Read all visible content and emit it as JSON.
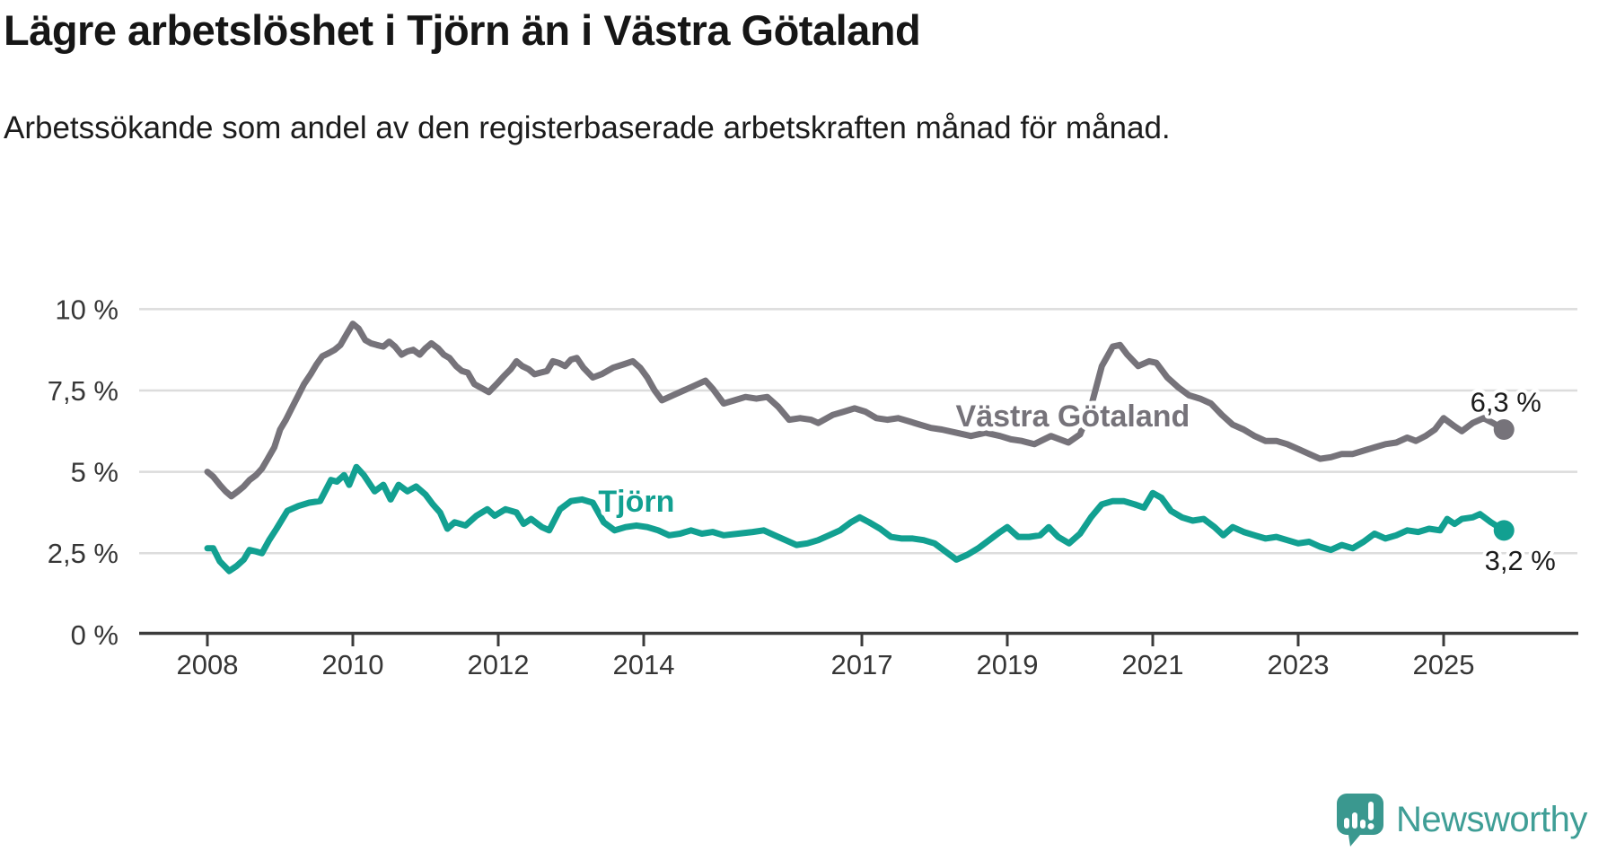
{
  "header": {
    "title": "Lägre arbetslöshet i Tjörn än i Västra Götaland",
    "subtitle": "Arbetssökande som andel av den registerbaserade arbetskraften månad för månad."
  },
  "chart_data": {
    "type": "line",
    "title": "Lägre arbetslöshet i Tjörn än i Västra Götaland",
    "xlabel": "",
    "ylabel": "",
    "x_range": [
      2008.0,
      2025.83
    ],
    "ylim": [
      0,
      10
    ],
    "grid": "horizontal",
    "legend_position": "inline-labels",
    "colors": {
      "grid": "#dcdcdc",
      "axis": "#3b3b3b",
      "tick_text": "#363636",
      "end_label_text": "#1b1b1b"
    },
    "y_axis": {
      "ticks": [
        {
          "v": 0,
          "label": "0 %"
        },
        {
          "v": 2.5,
          "label": "2,5 %"
        },
        {
          "v": 5,
          "label": "5 %"
        },
        {
          "v": 7.5,
          "label": "7,5 %"
        },
        {
          "v": 10,
          "label": "10 %"
        }
      ]
    },
    "x_axis": {
      "ticks": [
        {
          "t": 2008,
          "label": "2008"
        },
        {
          "t": 2010,
          "label": "2010"
        },
        {
          "t": 2012,
          "label": "2012"
        },
        {
          "t": 2014,
          "label": "2014"
        },
        {
          "t": 2017,
          "label": "2017"
        },
        {
          "t": 2019,
          "label": "2019"
        },
        {
          "t": 2021,
          "label": "2021"
        },
        {
          "t": 2023,
          "label": "2023"
        },
        {
          "t": 2025,
          "label": "2025"
        }
      ]
    },
    "series": [
      {
        "id": "vastra-gotaland",
        "label": "Västra Götaland",
        "color": "#76737a",
        "end_label": "6,3 %",
        "end_value": 6.3,
        "label_pos": {
          "t": 2019.9,
          "v": 6.73
        },
        "points": [
          [
            2008.0,
            5.0
          ],
          [
            2008.08,
            4.85
          ],
          [
            2008.17,
            4.6
          ],
          [
            2008.25,
            4.4
          ],
          [
            2008.33,
            4.25
          ],
          [
            2008.42,
            4.4
          ],
          [
            2008.5,
            4.55
          ],
          [
            2008.58,
            4.75
          ],
          [
            2008.67,
            4.9
          ],
          [
            2008.75,
            5.1
          ],
          [
            2008.83,
            5.4
          ],
          [
            2008.92,
            5.75
          ],
          [
            2009.0,
            6.3
          ],
          [
            2009.08,
            6.6
          ],
          [
            2009.17,
            7.0
          ],
          [
            2009.25,
            7.35
          ],
          [
            2009.33,
            7.7
          ],
          [
            2009.42,
            8.0
          ],
          [
            2009.5,
            8.3
          ],
          [
            2009.58,
            8.55
          ],
          [
            2009.67,
            8.65
          ],
          [
            2009.75,
            8.75
          ],
          [
            2009.83,
            8.9
          ],
          [
            2009.92,
            9.25
          ],
          [
            2010.0,
            9.55
          ],
          [
            2010.08,
            9.4
          ],
          [
            2010.17,
            9.05
          ],
          [
            2010.25,
            8.95
          ],
          [
            2010.33,
            8.9
          ],
          [
            2010.42,
            8.85
          ],
          [
            2010.5,
            9.0
          ],
          [
            2010.58,
            8.85
          ],
          [
            2010.67,
            8.6
          ],
          [
            2010.75,
            8.7
          ],
          [
            2010.83,
            8.75
          ],
          [
            2010.92,
            8.6
          ],
          [
            2011.0,
            8.8
          ],
          [
            2011.08,
            8.95
          ],
          [
            2011.17,
            8.8
          ],
          [
            2011.25,
            8.6
          ],
          [
            2011.33,
            8.5
          ],
          [
            2011.42,
            8.25
          ],
          [
            2011.5,
            8.1
          ],
          [
            2011.58,
            8.05
          ],
          [
            2011.67,
            7.7
          ],
          [
            2011.75,
            7.6
          ],
          [
            2011.87,
            7.45
          ],
          [
            2012.0,
            7.75
          ],
          [
            2012.08,
            7.95
          ],
          [
            2012.17,
            8.15
          ],
          [
            2012.25,
            8.4
          ],
          [
            2012.33,
            8.25
          ],
          [
            2012.42,
            8.15
          ],
          [
            2012.5,
            8.0
          ],
          [
            2012.58,
            8.05
          ],
          [
            2012.67,
            8.1
          ],
          [
            2012.75,
            8.4
          ],
          [
            2012.83,
            8.35
          ],
          [
            2012.92,
            8.25
          ],
          [
            2013.0,
            8.45
          ],
          [
            2013.08,
            8.5
          ],
          [
            2013.17,
            8.2
          ],
          [
            2013.3,
            7.9
          ],
          [
            2013.42,
            8.0
          ],
          [
            2013.58,
            8.2
          ],
          [
            2013.72,
            8.3
          ],
          [
            2013.85,
            8.4
          ],
          [
            2013.95,
            8.2
          ],
          [
            2014.05,
            7.9
          ],
          [
            2014.15,
            7.5
          ],
          [
            2014.25,
            7.2
          ],
          [
            2014.4,
            7.35
          ],
          [
            2014.55,
            7.5
          ],
          [
            2014.7,
            7.65
          ],
          [
            2014.85,
            7.8
          ],
          [
            2014.95,
            7.55
          ],
          [
            2015.1,
            7.1
          ],
          [
            2015.25,
            7.2
          ],
          [
            2015.4,
            7.3
          ],
          [
            2015.55,
            7.25
          ],
          [
            2015.7,
            7.3
          ],
          [
            2015.85,
            7.0
          ],
          [
            2016.0,
            6.6
          ],
          [
            2016.15,
            6.65
          ],
          [
            2016.3,
            6.6
          ],
          [
            2016.4,
            6.5
          ],
          [
            2016.6,
            6.75
          ],
          [
            2016.75,
            6.85
          ],
          [
            2016.9,
            6.95
          ],
          [
            2017.05,
            6.85
          ],
          [
            2017.2,
            6.65
          ],
          [
            2017.35,
            6.6
          ],
          [
            2017.5,
            6.65
          ],
          [
            2017.65,
            6.55
          ],
          [
            2017.8,
            6.45
          ],
          [
            2017.95,
            6.35
          ],
          [
            2018.1,
            6.3
          ],
          [
            2018.3,
            6.2
          ],
          [
            2018.5,
            6.1
          ],
          [
            2018.7,
            6.2
          ],
          [
            2018.9,
            6.1
          ],
          [
            2019.05,
            6.0
          ],
          [
            2019.2,
            5.95
          ],
          [
            2019.37,
            5.85
          ],
          [
            2019.6,
            6.1
          ],
          [
            2019.84,
            5.9
          ],
          [
            2020.0,
            6.15
          ],
          [
            2020.15,
            7.0
          ],
          [
            2020.3,
            8.25
          ],
          [
            2020.45,
            8.85
          ],
          [
            2020.55,
            8.9
          ],
          [
            2020.65,
            8.6
          ],
          [
            2020.8,
            8.25
          ],
          [
            2020.95,
            8.4
          ],
          [
            2021.05,
            8.35
          ],
          [
            2021.2,
            7.9
          ],
          [
            2021.35,
            7.6
          ],
          [
            2021.5,
            7.35
          ],
          [
            2021.65,
            7.25
          ],
          [
            2021.8,
            7.1
          ],
          [
            2021.95,
            6.75
          ],
          [
            2022.1,
            6.45
          ],
          [
            2022.25,
            6.3
          ],
          [
            2022.4,
            6.1
          ],
          [
            2022.55,
            5.95
          ],
          [
            2022.7,
            5.95
          ],
          [
            2022.85,
            5.85
          ],
          [
            2023.0,
            5.7
          ],
          [
            2023.15,
            5.55
          ],
          [
            2023.3,
            5.4
          ],
          [
            2023.45,
            5.45
          ],
          [
            2023.6,
            5.55
          ],
          [
            2023.75,
            5.55
          ],
          [
            2023.9,
            5.65
          ],
          [
            2024.05,
            5.75
          ],
          [
            2024.2,
            5.85
          ],
          [
            2024.35,
            5.9
          ],
          [
            2024.5,
            6.05
          ],
          [
            2024.62,
            5.95
          ],
          [
            2024.75,
            6.1
          ],
          [
            2024.88,
            6.3
          ],
          [
            2025.0,
            6.65
          ],
          [
            2025.15,
            6.4
          ],
          [
            2025.25,
            6.25
          ],
          [
            2025.4,
            6.5
          ],
          [
            2025.55,
            6.65
          ],
          [
            2025.68,
            6.5
          ],
          [
            2025.83,
            6.3
          ]
        ]
      },
      {
        "id": "tjorn",
        "label": "Tjörn",
        "color": "#12a091",
        "end_label": "3,2 %",
        "end_value": 3.2,
        "label_pos": {
          "t": 2013.9,
          "v": 4.1
        },
        "points": [
          [
            2008.0,
            2.65
          ],
          [
            2008.08,
            2.65
          ],
          [
            2008.17,
            2.25
          ],
          [
            2008.3,
            1.95
          ],
          [
            2008.4,
            2.1
          ],
          [
            2008.5,
            2.3
          ],
          [
            2008.58,
            2.6
          ],
          [
            2008.67,
            2.55
          ],
          [
            2008.75,
            2.5
          ],
          [
            2008.85,
            2.9
          ],
          [
            2008.95,
            3.25
          ],
          [
            2009.1,
            3.8
          ],
          [
            2009.25,
            3.95
          ],
          [
            2009.4,
            4.05
          ],
          [
            2009.55,
            4.1
          ],
          [
            2009.7,
            4.75
          ],
          [
            2009.78,
            4.7
          ],
          [
            2009.88,
            4.9
          ],
          [
            2009.95,
            4.6
          ],
          [
            2010.05,
            5.15
          ],
          [
            2010.15,
            4.9
          ],
          [
            2010.3,
            4.4
          ],
          [
            2010.42,
            4.6
          ],
          [
            2010.52,
            4.15
          ],
          [
            2010.63,
            4.6
          ],
          [
            2010.75,
            4.4
          ],
          [
            2010.87,
            4.55
          ],
          [
            2011.0,
            4.3
          ],
          [
            2011.1,
            4.0
          ],
          [
            2011.2,
            3.75
          ],
          [
            2011.3,
            3.25
          ],
          [
            2011.4,
            3.45
          ],
          [
            2011.55,
            3.35
          ],
          [
            2011.7,
            3.65
          ],
          [
            2011.85,
            3.85
          ],
          [
            2011.95,
            3.65
          ],
          [
            2012.1,
            3.85
          ],
          [
            2012.25,
            3.75
          ],
          [
            2012.35,
            3.4
          ],
          [
            2012.45,
            3.55
          ],
          [
            2012.6,
            3.3
          ],
          [
            2012.7,
            3.2
          ],
          [
            2012.85,
            3.85
          ],
          [
            2013.0,
            4.1
          ],
          [
            2013.15,
            4.15
          ],
          [
            2013.3,
            4.05
          ],
          [
            2013.45,
            3.45
          ],
          [
            2013.6,
            3.2
          ],
          [
            2013.75,
            3.3
          ],
          [
            2013.9,
            3.35
          ],
          [
            2014.05,
            3.3
          ],
          [
            2014.2,
            3.2
          ],
          [
            2014.35,
            3.05
          ],
          [
            2014.5,
            3.1
          ],
          [
            2014.65,
            3.2
          ],
          [
            2014.8,
            3.1
          ],
          [
            2014.95,
            3.15
          ],
          [
            2015.1,
            3.05
          ],
          [
            2015.3,
            3.1
          ],
          [
            2015.5,
            3.15
          ],
          [
            2015.65,
            3.2
          ],
          [
            2015.8,
            3.05
          ],
          [
            2015.95,
            2.9
          ],
          [
            2016.1,
            2.75
          ],
          [
            2016.25,
            2.8
          ],
          [
            2016.4,
            2.9
          ],
          [
            2016.55,
            3.05
          ],
          [
            2016.7,
            3.2
          ],
          [
            2016.85,
            3.45
          ],
          [
            2016.97,
            3.6
          ],
          [
            2017.1,
            3.45
          ],
          [
            2017.25,
            3.25
          ],
          [
            2017.4,
            3.0
          ],
          [
            2017.55,
            2.95
          ],
          [
            2017.7,
            2.95
          ],
          [
            2017.85,
            2.9
          ],
          [
            2018.0,
            2.8
          ],
          [
            2018.15,
            2.55
          ],
          [
            2018.3,
            2.3
          ],
          [
            2018.45,
            2.45
          ],
          [
            2018.6,
            2.65
          ],
          [
            2018.75,
            2.9
          ],
          [
            2018.9,
            3.15
          ],
          [
            2019.0,
            3.3
          ],
          [
            2019.15,
            3.0
          ],
          [
            2019.3,
            3.0
          ],
          [
            2019.45,
            3.05
          ],
          [
            2019.57,
            3.3
          ],
          [
            2019.7,
            3.0
          ],
          [
            2019.85,
            2.8
          ],
          [
            2020.0,
            3.1
          ],
          [
            2020.15,
            3.6
          ],
          [
            2020.3,
            4.0
          ],
          [
            2020.45,
            4.1
          ],
          [
            2020.6,
            4.1
          ],
          [
            2020.75,
            4.0
          ],
          [
            2020.88,
            3.9
          ],
          [
            2021.0,
            4.35
          ],
          [
            2021.12,
            4.2
          ],
          [
            2021.25,
            3.8
          ],
          [
            2021.4,
            3.6
          ],
          [
            2021.55,
            3.5
          ],
          [
            2021.7,
            3.55
          ],
          [
            2021.85,
            3.3
          ],
          [
            2021.97,
            3.05
          ],
          [
            2022.1,
            3.3
          ],
          [
            2022.25,
            3.15
          ],
          [
            2022.4,
            3.05
          ],
          [
            2022.55,
            2.95
          ],
          [
            2022.7,
            3.0
          ],
          [
            2022.85,
            2.9
          ],
          [
            2023.0,
            2.8
          ],
          [
            2023.15,
            2.85
          ],
          [
            2023.3,
            2.7
          ],
          [
            2023.45,
            2.6
          ],
          [
            2023.6,
            2.75
          ],
          [
            2023.75,
            2.65
          ],
          [
            2023.9,
            2.85
          ],
          [
            2024.05,
            3.1
          ],
          [
            2024.2,
            2.95
          ],
          [
            2024.35,
            3.05
          ],
          [
            2024.5,
            3.2
          ],
          [
            2024.65,
            3.15
          ],
          [
            2024.8,
            3.25
          ],
          [
            2024.95,
            3.2
          ],
          [
            2025.05,
            3.55
          ],
          [
            2025.15,
            3.4
          ],
          [
            2025.25,
            3.55
          ],
          [
            2025.4,
            3.6
          ],
          [
            2025.5,
            3.7
          ],
          [
            2025.65,
            3.45
          ],
          [
            2025.83,
            3.2
          ]
        ]
      }
    ]
  },
  "footer": {
    "brand": "Newsworthy",
    "brand_color": "#3f9e96",
    "logo_bubble_color": "#3a988f"
  }
}
